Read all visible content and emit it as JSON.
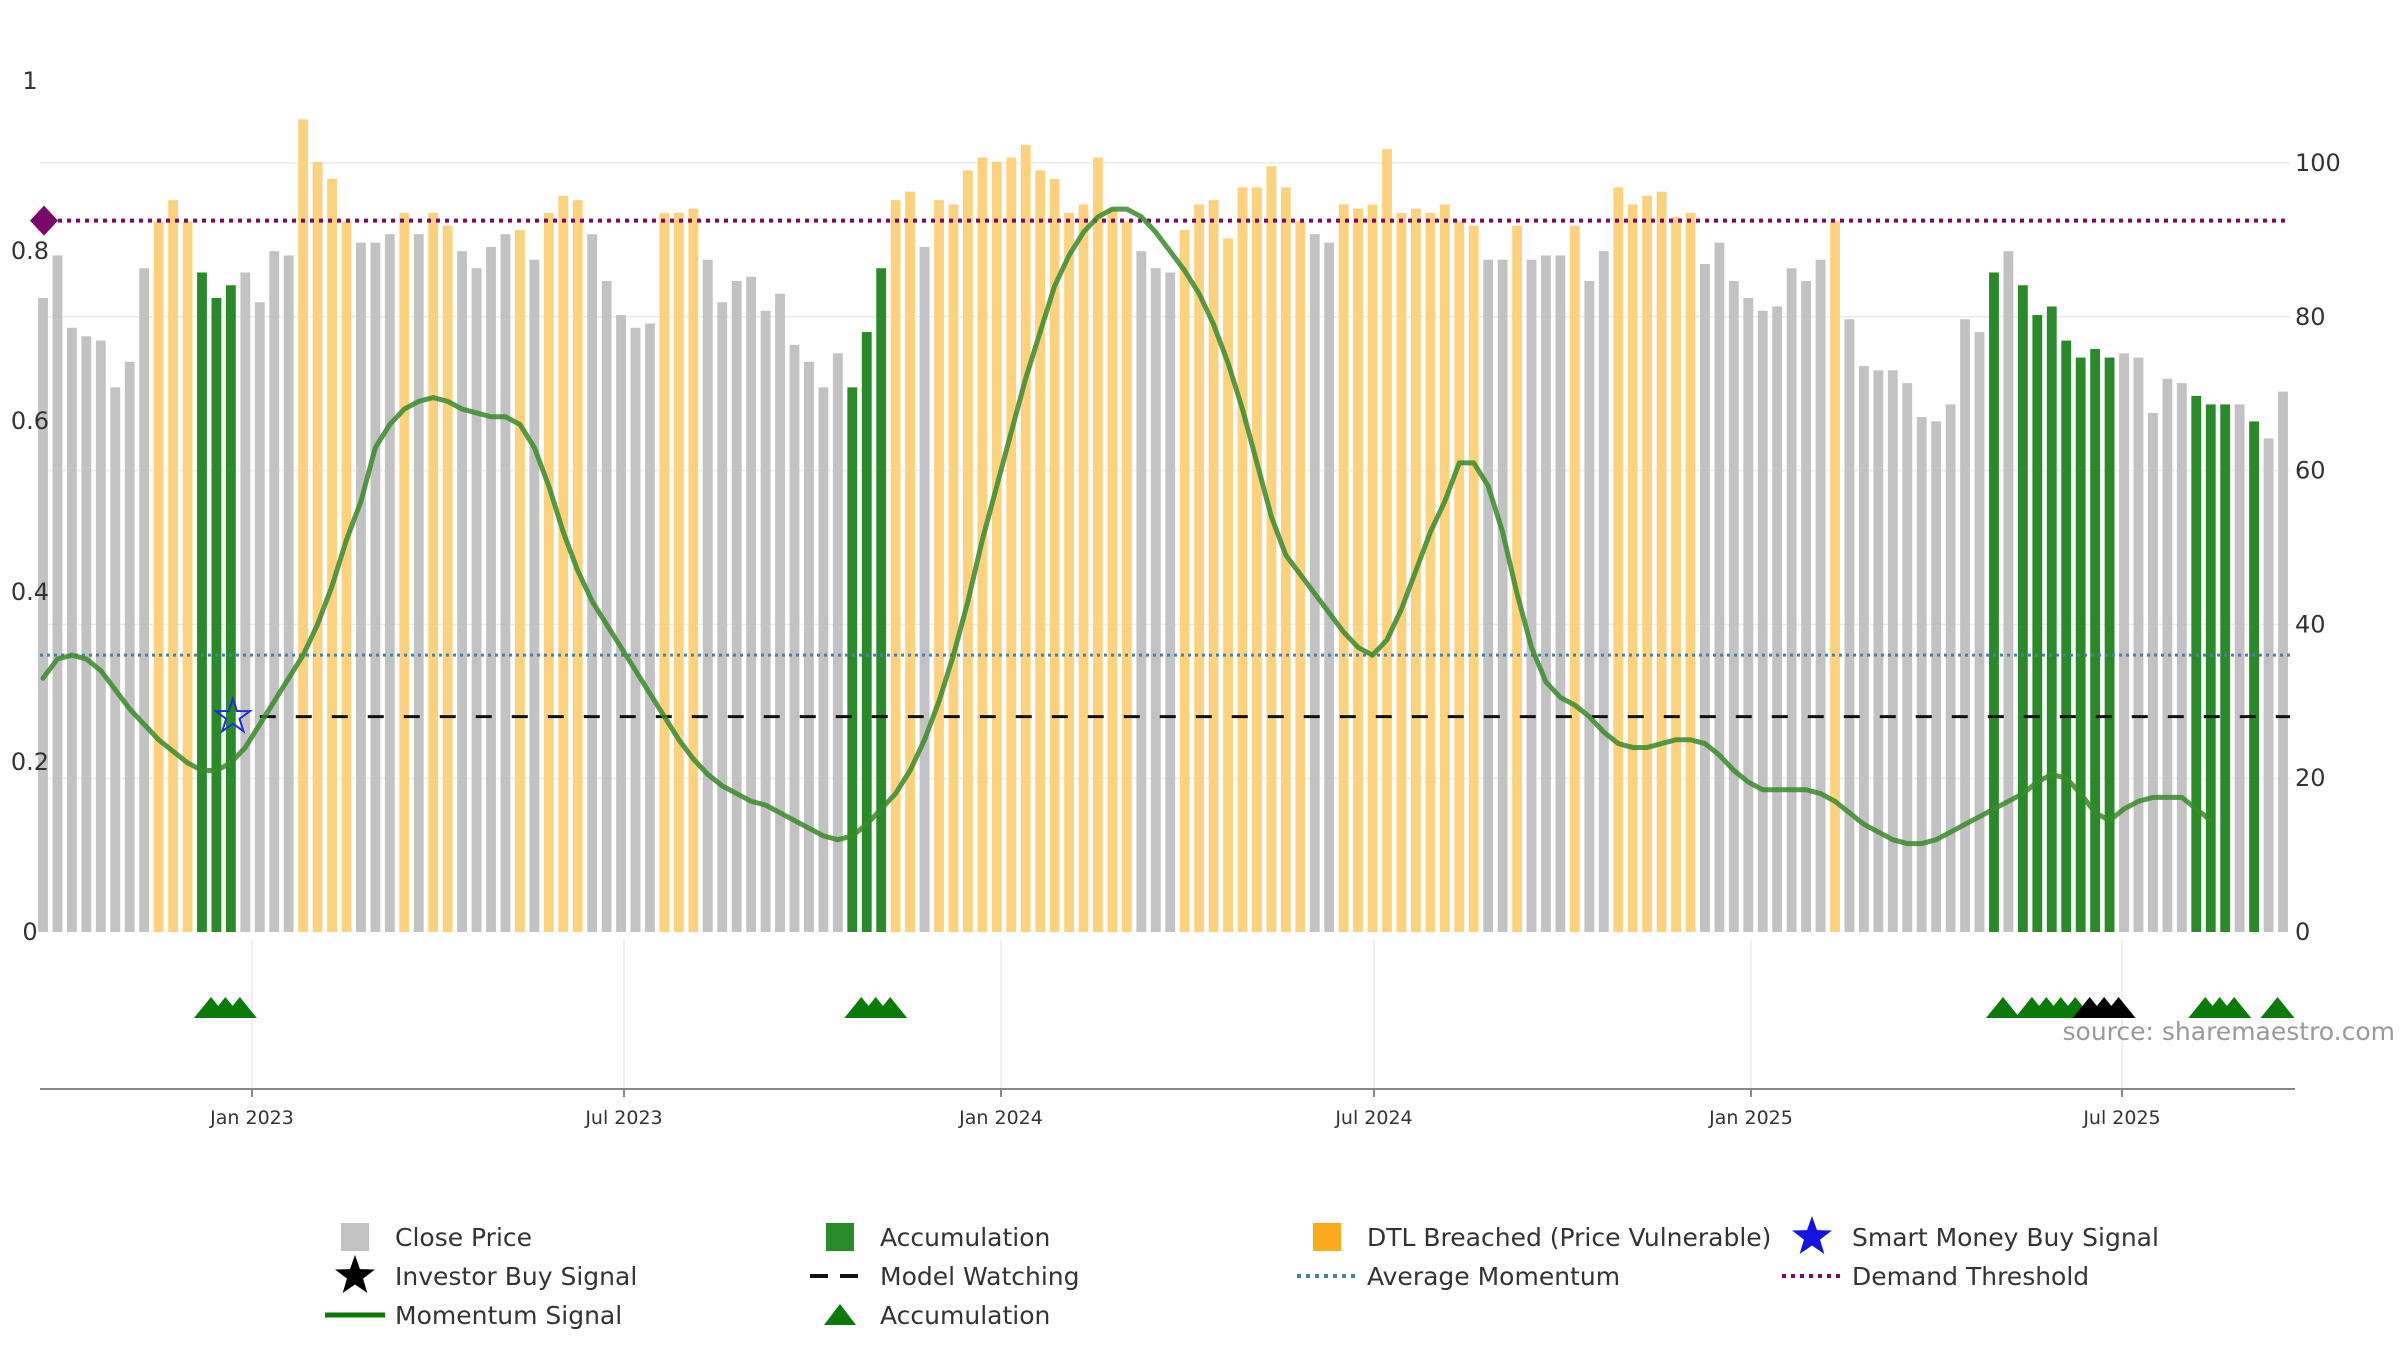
{
  "source_text": "source: sharemaestro.com",
  "colors": {
    "close": "#c2c2c2",
    "accumulation": "#2a8a2a",
    "dtl": "#fcd27f",
    "momentum": "#3a8a2a",
    "average": "#4a7fa8",
    "watching": "#111111",
    "demand": "#7a0a6a",
    "smart_money": "#1f2fd0",
    "tri_green": "#0b7a0b",
    "tri_black": "#000000"
  },
  "chart_data": {
    "type": "bar",
    "left_axis": {
      "min": 0,
      "max": 1,
      "ticks": [
        "0",
        "0.2",
        "0.4",
        "0.6",
        "0.8",
        "1"
      ]
    },
    "right_axis": {
      "min": 0,
      "max": 100,
      "ticks": [
        "0",
        "20",
        "40",
        "60",
        "80",
        "100"
      ]
    },
    "x_ticks": [
      "Jan 2023",
      "Jul 2023",
      "Jan 2024",
      "Jul 2024",
      "Jan 2025",
      "Jul 2025"
    ],
    "bars": [
      [
        0.745,
        "c"
      ],
      [
        0.795,
        "c"
      ],
      [
        0.71,
        "c"
      ],
      [
        0.7,
        "c"
      ],
      [
        0.695,
        "c"
      ],
      [
        0.64,
        "c"
      ],
      [
        0.67,
        "c"
      ],
      [
        0.78,
        "c"
      ],
      [
        0.835,
        "d"
      ],
      [
        0.86,
        "d"
      ],
      [
        0.835,
        "d"
      ],
      [
        0.775,
        "a"
      ],
      [
        0.745,
        "a"
      ],
      [
        0.76,
        "a"
      ],
      [
        0.775,
        "c"
      ],
      [
        0.74,
        "c"
      ],
      [
        0.8,
        "c"
      ],
      [
        0.795,
        "c"
      ],
      [
        0.955,
        "d"
      ],
      [
        0.905,
        "d"
      ],
      [
        0.885,
        "d"
      ],
      [
        0.835,
        "d"
      ],
      [
        0.81,
        "c"
      ],
      [
        0.81,
        "c"
      ],
      [
        0.82,
        "c"
      ],
      [
        0.845,
        "d"
      ],
      [
        0.82,
        "c"
      ],
      [
        0.845,
        "d"
      ],
      [
        0.83,
        "d"
      ],
      [
        0.8,
        "c"
      ],
      [
        0.78,
        "c"
      ],
      [
        0.805,
        "c"
      ],
      [
        0.82,
        "c"
      ],
      [
        0.825,
        "d"
      ],
      [
        0.79,
        "c"
      ],
      [
        0.845,
        "d"
      ],
      [
        0.865,
        "d"
      ],
      [
        0.86,
        "d"
      ],
      [
        0.82,
        "c"
      ],
      [
        0.765,
        "c"
      ],
      [
        0.725,
        "c"
      ],
      [
        0.71,
        "c"
      ],
      [
        0.715,
        "c"
      ],
      [
        0.845,
        "d"
      ],
      [
        0.845,
        "d"
      ],
      [
        0.85,
        "d"
      ],
      [
        0.79,
        "c"
      ],
      [
        0.74,
        "c"
      ],
      [
        0.765,
        "c"
      ],
      [
        0.77,
        "c"
      ],
      [
        0.73,
        "c"
      ],
      [
        0.75,
        "c"
      ],
      [
        0.69,
        "c"
      ],
      [
        0.67,
        "c"
      ],
      [
        0.64,
        "c"
      ],
      [
        0.68,
        "c"
      ],
      [
        0.64,
        "a"
      ],
      [
        0.705,
        "a"
      ],
      [
        0.78,
        "a"
      ],
      [
        0.86,
        "d"
      ],
      [
        0.87,
        "d"
      ],
      [
        0.805,
        "c"
      ],
      [
        0.86,
        "d"
      ],
      [
        0.855,
        "d"
      ],
      [
        0.895,
        "d"
      ],
      [
        0.91,
        "d"
      ],
      [
        0.905,
        "d"
      ],
      [
        0.91,
        "d"
      ],
      [
        0.925,
        "d"
      ],
      [
        0.895,
        "d"
      ],
      [
        0.885,
        "d"
      ],
      [
        0.845,
        "d"
      ],
      [
        0.855,
        "d"
      ],
      [
        0.91,
        "d"
      ],
      [
        0.85,
        "d"
      ],
      [
        0.835,
        "d"
      ],
      [
        0.8,
        "c"
      ],
      [
        0.78,
        "c"
      ],
      [
        0.775,
        "c"
      ],
      [
        0.825,
        "d"
      ],
      [
        0.855,
        "d"
      ],
      [
        0.86,
        "d"
      ],
      [
        0.815,
        "d"
      ],
      [
        0.875,
        "d"
      ],
      [
        0.875,
        "d"
      ],
      [
        0.9,
        "d"
      ],
      [
        0.875,
        "d"
      ],
      [
        0.835,
        "d"
      ],
      [
        0.82,
        "c"
      ],
      [
        0.81,
        "c"
      ],
      [
        0.855,
        "d"
      ],
      [
        0.85,
        "d"
      ],
      [
        0.855,
        "d"
      ],
      [
        0.92,
        "d"
      ],
      [
        0.845,
        "d"
      ],
      [
        0.85,
        "d"
      ],
      [
        0.845,
        "d"
      ],
      [
        0.855,
        "d"
      ],
      [
        0.835,
        "d"
      ],
      [
        0.83,
        "d"
      ],
      [
        0.79,
        "c"
      ],
      [
        0.79,
        "c"
      ],
      [
        0.83,
        "d"
      ],
      [
        0.79,
        "c"
      ],
      [
        0.795,
        "c"
      ],
      [
        0.795,
        "c"
      ],
      [
        0.83,
        "d"
      ],
      [
        0.765,
        "c"
      ],
      [
        0.8,
        "c"
      ],
      [
        0.875,
        "d"
      ],
      [
        0.855,
        "d"
      ],
      [
        0.865,
        "d"
      ],
      [
        0.87,
        "d"
      ],
      [
        0.84,
        "d"
      ],
      [
        0.845,
        "d"
      ],
      [
        0.785,
        "c"
      ],
      [
        0.81,
        "c"
      ],
      [
        0.765,
        "c"
      ],
      [
        0.745,
        "c"
      ],
      [
        0.73,
        "c"
      ],
      [
        0.735,
        "c"
      ],
      [
        0.78,
        "c"
      ],
      [
        0.765,
        "c"
      ],
      [
        0.79,
        "c"
      ],
      [
        0.835,
        "d"
      ],
      [
        0.72,
        "c"
      ],
      [
        0.665,
        "c"
      ],
      [
        0.66,
        "c"
      ],
      [
        0.66,
        "c"
      ],
      [
        0.645,
        "c"
      ],
      [
        0.605,
        "c"
      ],
      [
        0.6,
        "c"
      ],
      [
        0.62,
        "c"
      ],
      [
        0.72,
        "c"
      ],
      [
        0.705,
        "c"
      ],
      [
        0.775,
        "a"
      ],
      [
        0.8,
        "c"
      ],
      [
        0.76,
        "a"
      ],
      [
        0.725,
        "a"
      ],
      [
        0.735,
        "a"
      ],
      [
        0.695,
        "a"
      ],
      [
        0.675,
        "a"
      ],
      [
        0.685,
        "a"
      ],
      [
        0.675,
        "a"
      ],
      [
        0.68,
        "c"
      ],
      [
        0.675,
        "c"
      ],
      [
        0.61,
        "c"
      ],
      [
        0.65,
        "c"
      ],
      [
        0.645,
        "c"
      ],
      [
        0.63,
        "a"
      ],
      [
        0.62,
        "a"
      ],
      [
        0.62,
        "a"
      ],
      [
        0.62,
        "c"
      ],
      [
        0.6,
        "a"
      ],
      [
        0.58,
        "c"
      ],
      [
        0.635,
        "c"
      ]
    ],
    "momentum": [
      [
        0,
        33
      ],
      [
        1,
        35.5
      ],
      [
        2,
        36
      ],
      [
        3,
        35.5
      ],
      [
        4,
        34
      ],
      [
        5,
        31.5
      ],
      [
        6,
        29
      ],
      [
        7,
        27
      ],
      [
        8,
        25
      ],
      [
        9,
        23.5
      ],
      [
        10,
        22
      ],
      [
        11,
        21
      ],
      [
        12,
        21
      ],
      [
        13,
        22
      ],
      [
        14,
        24
      ],
      [
        15,
        27
      ],
      [
        16,
        30
      ],
      [
        17,
        33
      ],
      [
        18,
        36
      ],
      [
        19,
        40
      ],
      [
        20,
        45
      ],
      [
        21,
        51
      ],
      [
        22,
        56
      ],
      [
        23,
        63
      ],
      [
        24,
        66
      ],
      [
        25,
        68
      ],
      [
        26,
        69
      ],
      [
        27,
        69.5
      ],
      [
        28,
        69
      ],
      [
        29,
        68
      ],
      [
        30,
        67.5
      ],
      [
        31,
        67
      ],
      [
        32,
        67
      ],
      [
        33,
        66
      ],
      [
        34,
        63
      ],
      [
        35,
        58
      ],
      [
        36,
        52
      ],
      [
        37,
        47
      ],
      [
        38,
        43
      ],
      [
        39,
        40
      ],
      [
        40,
        37
      ],
      [
        41,
        34
      ],
      [
        42,
        31
      ],
      [
        43,
        28
      ],
      [
        44,
        25
      ],
      [
        45,
        22.5
      ],
      [
        46,
        20.5
      ],
      [
        47,
        19
      ],
      [
        48,
        18
      ],
      [
        49,
        17
      ],
      [
        50,
        16.5
      ],
      [
        51,
        15.5
      ],
      [
        52,
        14.5
      ],
      [
        53,
        13.5
      ],
      [
        54,
        12.5
      ],
      [
        55,
        12
      ],
      [
        56,
        12.5
      ],
      [
        57,
        14
      ],
      [
        58,
        16
      ],
      [
        59,
        18
      ],
      [
        60,
        21
      ],
      [
        61,
        25
      ],
      [
        62,
        30
      ],
      [
        63,
        36
      ],
      [
        64,
        43
      ],
      [
        65,
        51
      ],
      [
        66,
        58
      ],
      [
        67,
        65
      ],
      [
        68,
        72
      ],
      [
        69,
        78
      ],
      [
        70,
        84
      ],
      [
        71,
        88
      ],
      [
        72,
        91
      ],
      [
        73,
        93
      ],
      [
        74,
        94
      ],
      [
        75,
        94
      ],
      [
        76,
        93
      ],
      [
        77,
        91
      ],
      [
        78,
        88.5
      ],
      [
        79,
        86
      ],
      [
        80,
        83
      ],
      [
        81,
        79
      ],
      [
        82,
        74
      ],
      [
        83,
        68
      ],
      [
        84,
        61
      ],
      [
        85,
        54
      ],
      [
        86,
        49
      ],
      [
        87,
        46.5
      ],
      [
        88,
        44
      ],
      [
        89,
        41.5
      ],
      [
        90,
        39
      ],
      [
        91,
        37
      ],
      [
        92,
        36
      ],
      [
        93,
        38
      ],
      [
        94,
        42
      ],
      [
        95,
        47
      ],
      [
        96,
        52
      ],
      [
        97,
        56
      ],
      [
        98,
        61
      ],
      [
        99,
        61
      ],
      [
        100,
        58
      ],
      [
        101,
        52
      ],
      [
        102,
        44
      ],
      [
        103,
        37
      ],
      [
        104,
        32.5
      ],
      [
        105,
        30.5
      ],
      [
        106,
        29.5
      ],
      [
        107,
        28
      ],
      [
        108,
        26
      ],
      [
        109,
        24.5
      ],
      [
        110,
        24
      ],
      [
        111,
        24
      ],
      [
        112,
        24.5
      ],
      [
        113,
        25
      ],
      [
        114,
        25
      ],
      [
        115,
        24.5
      ],
      [
        116,
        23
      ],
      [
        117,
        21
      ],
      [
        118,
        19.5
      ],
      [
        119,
        18.5
      ],
      [
        120,
        18.5
      ],
      [
        121,
        18.5
      ],
      [
        122,
        18.5
      ],
      [
        123,
        18
      ],
      [
        124,
        17
      ],
      [
        125,
        15.5
      ],
      [
        126,
        14
      ],
      [
        127,
        13
      ],
      [
        128,
        12
      ],
      [
        129,
        11.5
      ],
      [
        130,
        11.5
      ],
      [
        131,
        12
      ],
      [
        132,
        13
      ],
      [
        133,
        14
      ],
      [
        134,
        15
      ],
      [
        135,
        16
      ],
      [
        136,
        17
      ],
      [
        137,
        18
      ],
      [
        138,
        19.5
      ],
      [
        139,
        20.5
      ],
      [
        140,
        20
      ],
      [
        141,
        18
      ],
      [
        142,
        15.5
      ],
      [
        143,
        14.5
      ],
      [
        144,
        16
      ],
      [
        145,
        17
      ],
      [
        146,
        17.5
      ],
      [
        147,
        17.5
      ],
      [
        148,
        17.5
      ],
      [
        149,
        16
      ],
      [
        150,
        14.5
      ]
    ],
    "average_momentum": 36,
    "model_watching": 28,
    "demand_threshold": 92.5,
    "smart_money_signals": [
      [
        13,
        28
      ]
    ],
    "accumulation_triangles": [
      11,
      12,
      13,
      56,
      57,
      58,
      135,
      137,
      138,
      139,
      140,
      149,
      150,
      151,
      154
    ],
    "investor_triangles": [
      141,
      142,
      143
    ],
    "legend": [
      {
        "label": "Close Price",
        "shape": "square",
        "color": "#c2c2c2"
      },
      {
        "label": "Accumulation",
        "shape": "square",
        "color": "#2a8a2a"
      },
      {
        "label": "DTL Breached (Price Vulnerable)",
        "shape": "square",
        "color": "#fcaa1f"
      },
      {
        "label": "Smart Money Buy Signal",
        "shape": "star",
        "color": "#1414e0"
      },
      {
        "label": "Investor Buy Signal",
        "shape": "star",
        "color": "#000000"
      },
      {
        "label": "Model Watching",
        "shape": "dash",
        "color": "#111111"
      },
      {
        "label": "Average Momentum",
        "shape": "dot",
        "color": "#4a7fa8"
      },
      {
        "label": "Demand Threshold",
        "shape": "dot",
        "color": "#7a0a6a"
      },
      {
        "label": "Momentum Signal",
        "shape": "line",
        "color": "#0b7a0b"
      },
      {
        "label": "Accumulation",
        "shape": "triangle",
        "color": "#0b7a0b"
      }
    ]
  }
}
